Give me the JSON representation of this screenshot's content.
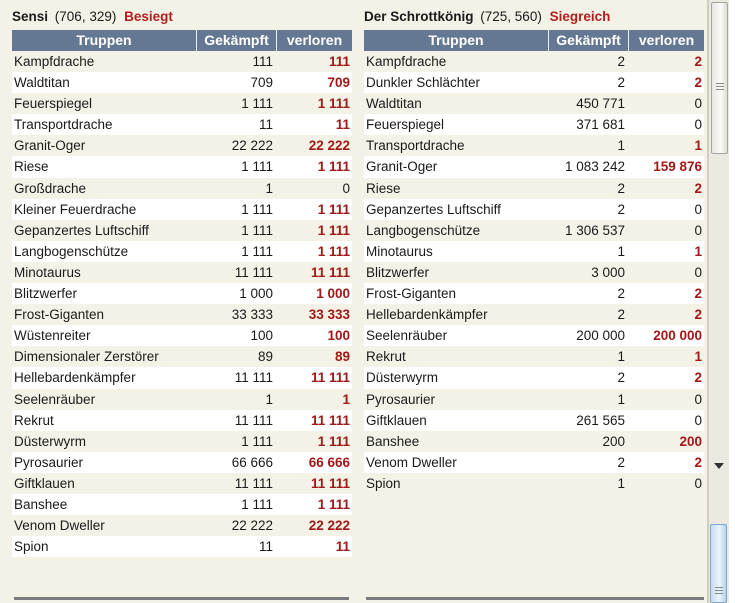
{
  "headers": {
    "troops": "Truppen",
    "fought": "Gekämpft",
    "lost": "verloren"
  },
  "left": {
    "name": "Sensi",
    "coords": "(706, 329)",
    "status": "Besiegt",
    "rows": [
      {
        "unit": "Kampfdrache",
        "fought": "111",
        "lost": "111"
      },
      {
        "unit": "Waldtitan",
        "fought": "709",
        "lost": "709"
      },
      {
        "unit": "Feuerspiegel",
        "fought": "1 111",
        "lost": "1 111"
      },
      {
        "unit": "Transportdrache",
        "fought": "11",
        "lost": "11"
      },
      {
        "unit": "Granit-Oger",
        "fought": "22 222",
        "lost": "22 222"
      },
      {
        "unit": "Riese",
        "fought": "1 111",
        "lost": "1 111"
      },
      {
        "unit": "Großdrache",
        "fought": "1",
        "lost": "0"
      },
      {
        "unit": "Kleiner Feuerdrache",
        "fought": "1 111",
        "lost": "1 111"
      },
      {
        "unit": "Gepanzertes Luftschiff",
        "fought": "1 111",
        "lost": "1 111"
      },
      {
        "unit": "Langbogenschütze",
        "fought": "1 111",
        "lost": "1 111"
      },
      {
        "unit": "Minotaurus",
        "fought": "11 111",
        "lost": "11 111"
      },
      {
        "unit": "Blitzwerfer",
        "fought": "1 000",
        "lost": "1 000"
      },
      {
        "unit": "Frost-Giganten",
        "fought": "33 333",
        "lost": "33 333"
      },
      {
        "unit": "Wüstenreiter",
        "fought": "100",
        "lost": "100"
      },
      {
        "unit": "Dimensionaler Zerstörer",
        "fought": "89",
        "lost": "89"
      },
      {
        "unit": "Hellebardenkämpfer",
        "fought": "11 111",
        "lost": "11 111"
      },
      {
        "unit": "Seelenräuber",
        "fought": "1",
        "lost": "1"
      },
      {
        "unit": "Rekrut",
        "fought": "11 111",
        "lost": "11 111"
      },
      {
        "unit": "Düsterwyrm",
        "fought": "1 111",
        "lost": "1 111"
      },
      {
        "unit": "Pyrosaurier",
        "fought": "66 666",
        "lost": "66 666"
      },
      {
        "unit": "Giftklauen",
        "fought": "11 111",
        "lost": "11 111"
      },
      {
        "unit": "Banshee",
        "fought": "1 111",
        "lost": "1 111"
      },
      {
        "unit": "Venom Dweller",
        "fought": "22 222",
        "lost": "22 222"
      },
      {
        "unit": "Spion",
        "fought": "11",
        "lost": "11"
      }
    ]
  },
  "right": {
    "name": "Der Schrottkönig",
    "coords": "(725, 560)",
    "status": "Siegreich",
    "rows": [
      {
        "unit": "Kampfdrache",
        "fought": "2",
        "lost": "2"
      },
      {
        "unit": "Dunkler Schlächter",
        "fought": "2",
        "lost": "2"
      },
      {
        "unit": "Waldtitan",
        "fought": "450 771",
        "lost": "0"
      },
      {
        "unit": "Feuerspiegel",
        "fought": "371 681",
        "lost": "0"
      },
      {
        "unit": "Transportdrache",
        "fought": "1",
        "lost": "1"
      },
      {
        "unit": "Granit-Oger",
        "fought": "1 083 242",
        "lost": "159 876"
      },
      {
        "unit": "Riese",
        "fought": "2",
        "lost": "2"
      },
      {
        "unit": "Gepanzertes Luftschiff",
        "fought": "2",
        "lost": "0"
      },
      {
        "unit": "Langbogenschütze",
        "fought": "1 306 537",
        "lost": "0"
      },
      {
        "unit": "Minotaurus",
        "fought": "1",
        "lost": "1"
      },
      {
        "unit": "Blitzwerfer",
        "fought": "3 000",
        "lost": "0"
      },
      {
        "unit": "Frost-Giganten",
        "fought": "2",
        "lost": "2"
      },
      {
        "unit": "Hellebardenkämpfer",
        "fought": "2",
        "lost": "2"
      },
      {
        "unit": "Seelenräuber",
        "fought": "200 000",
        "lost": "200 000"
      },
      {
        "unit": "Rekrut",
        "fought": "1",
        "lost": "1"
      },
      {
        "unit": "Düsterwyrm",
        "fought": "2",
        "lost": "2"
      },
      {
        "unit": "Pyrosaurier",
        "fought": "1",
        "lost": "0"
      },
      {
        "unit": "Giftklauen",
        "fought": "261 565",
        "lost": "0"
      },
      {
        "unit": "Banshee",
        "fought": "200",
        "lost": "200"
      },
      {
        "unit": "Venom Dweller",
        "fought": "2",
        "lost": "2"
      },
      {
        "unit": "Spion",
        "fought": "1",
        "lost": "0"
      }
    ]
  },
  "colors": {
    "header_bg": "#647894",
    "loss_red": "#a01818",
    "status_red": "#b02020",
    "row_tint": "#f4f2e6"
  },
  "scrollbar": {
    "thumb_top_icon": "grip-icon",
    "arrow_icon": "arrow-down-icon"
  }
}
